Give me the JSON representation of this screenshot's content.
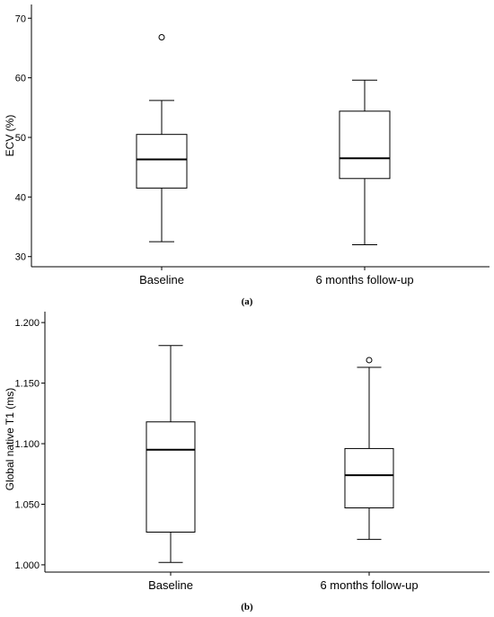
{
  "chart_data": [
    {
      "type": "box",
      "panel_label": "(a)",
      "ylabel": "ECV (%)",
      "categories": [
        "Baseline",
        "6 months follow-up"
      ],
      "yticks": [
        30,
        40,
        50,
        60,
        70
      ],
      "ytick_labels": [
        "30",
        "40",
        "50",
        "60",
        "70"
      ],
      "ylim": [
        28.3,
        72.3
      ],
      "boxes": [
        {
          "category": "Baseline",
          "min": 32.5,
          "q1": 41.5,
          "median": 46.3,
          "q3": 50.5,
          "max": 56.2,
          "outliers": [
            66.8
          ]
        },
        {
          "category": "6 months follow-up",
          "min": 32.0,
          "q1": 43.1,
          "median": 46.5,
          "q3": 54.4,
          "max": 59.6,
          "outliers": []
        }
      ],
      "grid": false
    },
    {
      "type": "box",
      "panel_label": "(b)",
      "ylabel": "Global native T1 (ms)",
      "categories": [
        "Baseline",
        "6 months follow-up"
      ],
      "yticks": [
        1.0,
        1.05,
        1.1,
        1.15,
        1.2
      ],
      "ytick_labels": [
        "1.000",
        "1.050",
        "1.100",
        "1.150",
        "1.200"
      ],
      "ylim": [
        0.994,
        1.209
      ],
      "boxes": [
        {
          "category": "Baseline",
          "min": 1.002,
          "q1": 1.027,
          "median": 1.095,
          "q3": 1.118,
          "max": 1.181,
          "outliers": []
        },
        {
          "category": "6 months follow-up",
          "min": 1.021,
          "q1": 1.047,
          "median": 1.074,
          "q3": 1.096,
          "max": 1.163,
          "outliers": [
            1.169
          ]
        }
      ],
      "grid": false
    }
  ]
}
